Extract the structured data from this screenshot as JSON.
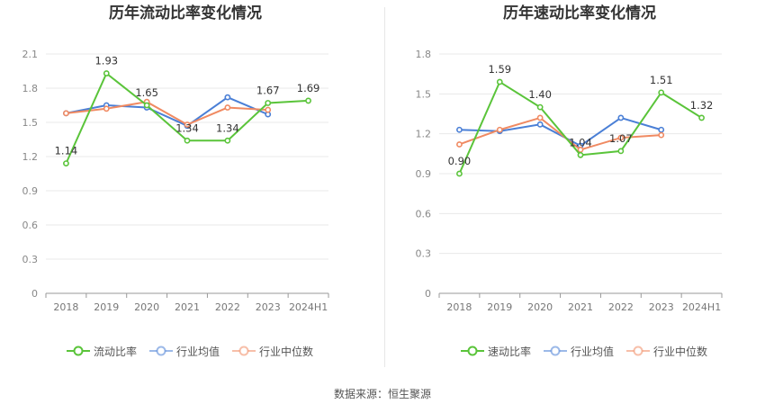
{
  "source_text": "数据来源：恒生聚源",
  "chart_data": [
    {
      "type": "line",
      "title": "历年流动比率变化情况",
      "categories": [
        "2018",
        "2019",
        "2020",
        "2021",
        "2022",
        "2023",
        "2024H1"
      ],
      "ylim": [
        0,
        2.1
      ],
      "yticks": [
        "0",
        "0.3",
        "0.6",
        "0.9",
        "1.2",
        "1.5",
        "1.8",
        "2.1"
      ],
      "grid": true,
      "legend_position": "bottom-center",
      "series": [
        {
          "name": "流动比率",
          "color": "#5ac43a",
          "values": [
            1.14,
            1.93,
            1.65,
            1.34,
            1.34,
            1.67,
            1.69
          ],
          "labels": [
            "1.14",
            "1.93",
            "1.65",
            "1.34",
            "1.34",
            "1.67",
            "1.69"
          ]
        },
        {
          "name": "行业均值",
          "color": "#4a7fd6",
          "values": [
            1.58,
            1.65,
            1.63,
            1.47,
            1.72,
            1.57,
            null
          ]
        },
        {
          "name": "行业中位数",
          "color": "#f08a62",
          "values": [
            1.58,
            1.62,
            1.68,
            1.48,
            1.63,
            1.61,
            null
          ]
        }
      ]
    },
    {
      "type": "line",
      "title": "历年速动比率变化情况",
      "categories": [
        "2018",
        "2019",
        "2020",
        "2021",
        "2022",
        "2023",
        "2024H1"
      ],
      "ylim": [
        0,
        1.8
      ],
      "yticks": [
        "0",
        "0.3",
        "0.6",
        "0.9",
        "1.2",
        "1.5",
        "1.8"
      ],
      "grid": true,
      "legend_position": "bottom-center",
      "series": [
        {
          "name": "速动比率",
          "color": "#5ac43a",
          "values": [
            0.9,
            1.59,
            1.4,
            1.04,
            1.07,
            1.51,
            1.32
          ],
          "labels": [
            "0.90",
            "1.59",
            "1.40",
            "1.04",
            "1.07",
            "1.51",
            "1.32"
          ]
        },
        {
          "name": "行业均值",
          "color": "#4a7fd6",
          "values": [
            1.23,
            1.22,
            1.27,
            1.11,
            1.32,
            1.23,
            null
          ]
        },
        {
          "name": "行业中位数",
          "color": "#f08a62",
          "values": [
            1.12,
            1.23,
            1.32,
            1.08,
            1.17,
            1.19,
            null
          ]
        }
      ]
    }
  ]
}
